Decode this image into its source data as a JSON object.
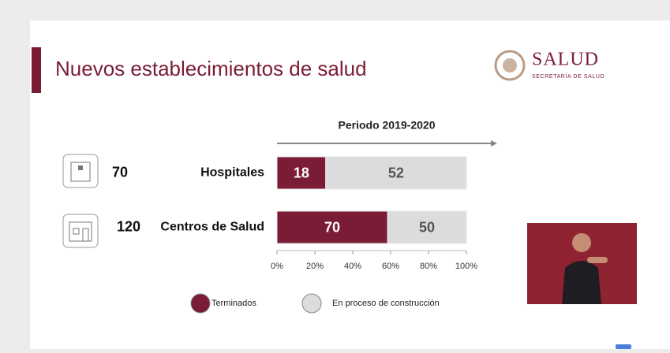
{
  "chart_data": {
    "type": "stacked-bar-percent",
    "title": "Nuevos establecimientos de salud",
    "logo": {
      "name": "SALUD",
      "subtitle": "SECRETARÍA DE SALUD"
    },
    "period": "Periodo 2019-2020",
    "categories": [
      "Hospitales",
      "Centros de Salud"
    ],
    "totals": [
      70,
      120
    ],
    "series": [
      {
        "name": "Terminados",
        "color": "#7b1c36",
        "values": [
          18,
          70
        ]
      },
      {
        "name": "En proceso de construcción",
        "color": "#dcdcdc",
        "values": [
          52,
          50
        ]
      }
    ],
    "xlim": [
      0,
      100
    ],
    "xticks": [
      {
        "value": 0,
        "label": "0%"
      },
      {
        "value": 20,
        "label": "20%"
      },
      {
        "value": 40,
        "label": "40%"
      },
      {
        "value": 60,
        "label": "60%"
      },
      {
        "value": 80,
        "label": "80%"
      },
      {
        "value": 100,
        "label": "100%"
      }
    ]
  }
}
